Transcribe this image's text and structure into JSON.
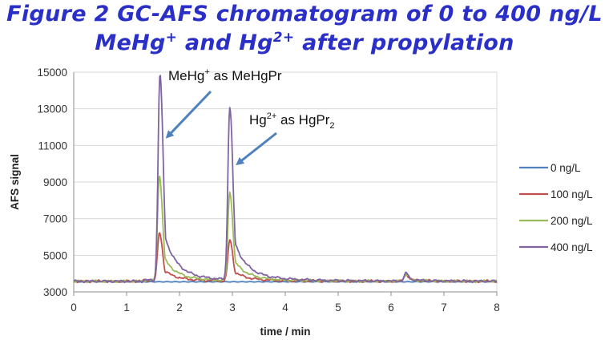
{
  "chart_data": {
    "type": "line",
    "title_parts": {
      "line1_pre": "Figure 2 GC-AFS chromatogram of 0 to 400 ng/L",
      "line2_a": "MeHg",
      "line2_a_sup": "+",
      "line2_b": " and Hg",
      "line2_b_sup": "2+",
      "line2_c": " after propylation"
    },
    "xlabel": "time / min",
    "ylabel": "AFS signal",
    "xlim": [
      0,
      8
    ],
    "ylim": [
      3000,
      15000
    ],
    "x_ticks": [
      "0",
      "1",
      "2",
      "3",
      "4",
      "5",
      "6",
      "7",
      "8"
    ],
    "y_ticks": [
      "3000",
      "5000",
      "7000",
      "9000",
      "11000",
      "13000",
      "15000"
    ],
    "grid": "horizontal",
    "legend_position": "right",
    "series": [
      {
        "name": "0 ng/L",
        "color": "#4f81bd",
        "peaks": []
      },
      {
        "name": "100 ng/L",
        "color": "#c0504d",
        "peaks": [
          {
            "x": 1.62,
            "y": 6250
          },
          {
            "x": 2.95,
            "y": 5800
          },
          {
            "x": 6.28,
            "y": 3950
          }
        ]
      },
      {
        "name": "200 ng/L",
        "color": "#9bbb59",
        "peaks": [
          {
            "x": 1.62,
            "y": 9350
          },
          {
            "x": 2.95,
            "y": 8400
          },
          {
            "x": 6.28,
            "y": 3950
          }
        ]
      },
      {
        "name": "400 ng/L",
        "color": "#8064a2",
        "peaks": [
          {
            "x": 1.63,
            "y": 14900
          },
          {
            "x": 2.95,
            "y": 13000
          },
          {
            "x": 6.28,
            "y": 4000
          }
        ]
      }
    ],
    "baseline": 3580,
    "annotations": [
      {
        "text_main": "MeHg",
        "text_sup": "+",
        "text_rest": " as MeHgPr",
        "arrow_to": {
          "x": 1.75,
          "y": 11500
        }
      },
      {
        "text_main": "Hg",
        "text_sup": "2+",
        "text_rest": " as HgPr",
        "text_sub": "2",
        "arrow_to": {
          "x": 3.05,
          "y": 10200
        }
      }
    ]
  }
}
